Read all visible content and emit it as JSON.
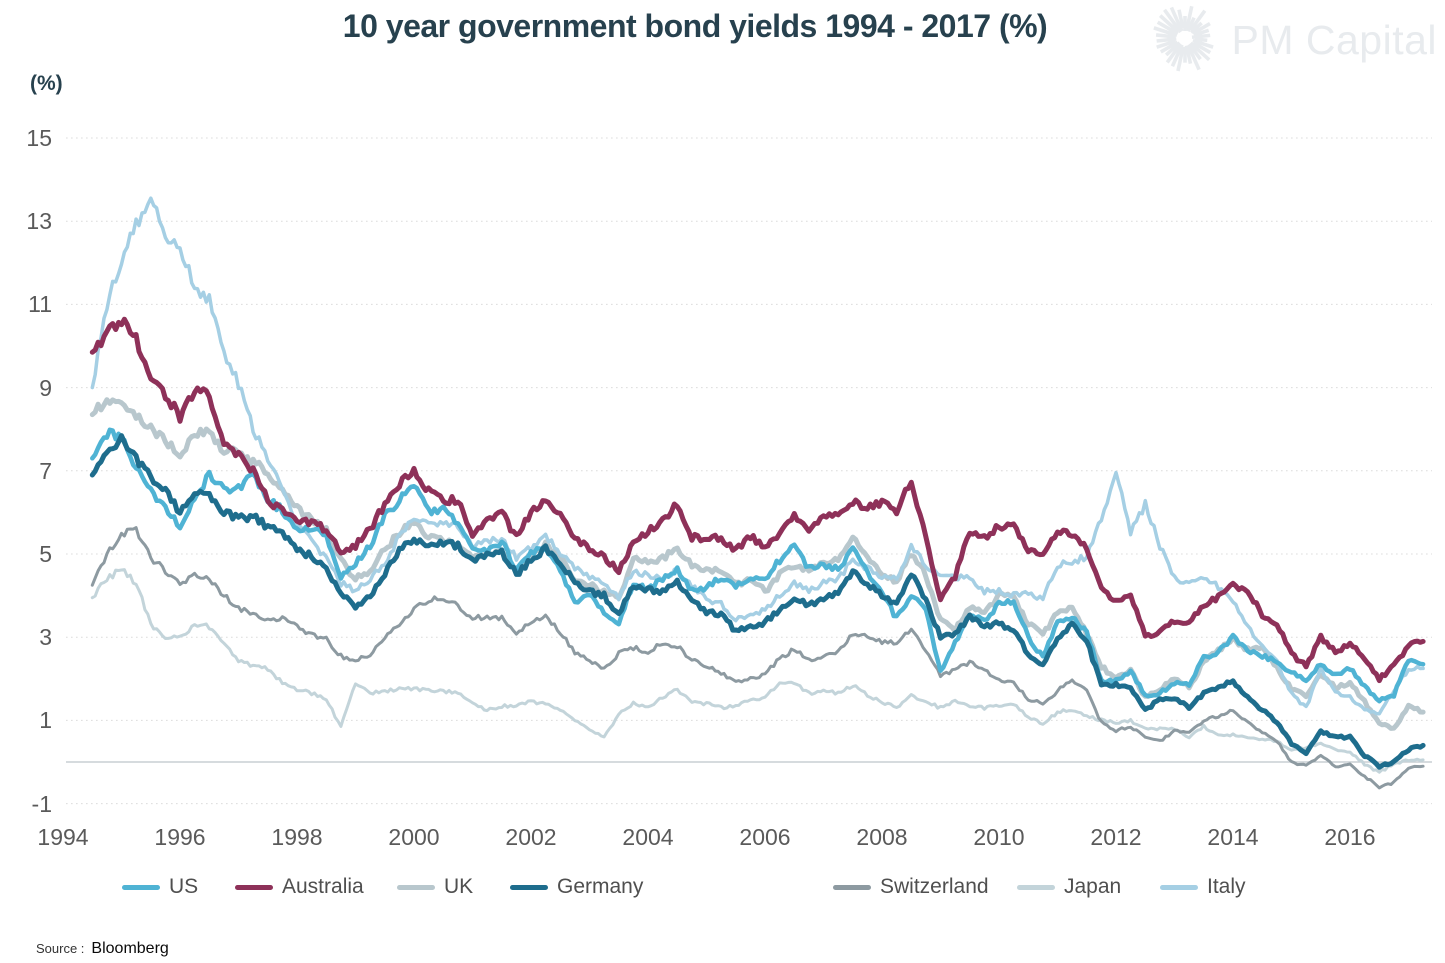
{
  "header": {
    "title": "10 year government bond yields 1994 - 2017 (%)",
    "title_color": "#27414e"
  },
  "logo": {
    "text": "PM Capital",
    "color": "#e8ebee",
    "icon": "starburst-icon"
  },
  "source": {
    "label": "Source :",
    "value": "Bloomberg"
  },
  "chart_data": {
    "type": "line",
    "title": "10 year government bond yields 1994 - 2017 (%)",
    "ylabel": "(%)",
    "xlabel": "",
    "ylim": [
      -1,
      15
    ],
    "xlim": [
      1994,
      2017.4
    ],
    "yticks": [
      15,
      13,
      11,
      9,
      7,
      5,
      3,
      1,
      -1
    ],
    "xticks": [
      1994,
      1996,
      1998,
      2000,
      2002,
      2004,
      2006,
      2008,
      2010,
      2012,
      2014,
      2016
    ],
    "grid": "horizontal-dotted",
    "grid_color": "#dcdcdc",
    "zero_line": true,
    "zero_line_color": "#c9cfd3",
    "tick_color": "#5a5a5a",
    "legend_position": "bottom",
    "x": [
      1994.5,
      1994.75,
      1995,
      1995.25,
      1995.5,
      1995.75,
      1996,
      1996.25,
      1996.5,
      1996.75,
      1997,
      1997.25,
      1997.5,
      1997.75,
      1998,
      1998.25,
      1998.5,
      1998.75,
      1999,
      1999.25,
      1999.5,
      1999.75,
      2000,
      2000.25,
      2000.5,
      2000.75,
      2001,
      2001.25,
      2001.5,
      2001.75,
      2002,
      2002.25,
      2002.5,
      2002.75,
      2003,
      2003.25,
      2003.5,
      2003.75,
      2004,
      2004.25,
      2004.5,
      2004.75,
      2005,
      2005.25,
      2005.5,
      2005.75,
      2006,
      2006.25,
      2006.5,
      2006.75,
      2007,
      2007.25,
      2007.5,
      2007.75,
      2008,
      2008.25,
      2008.5,
      2008.75,
      2009,
      2009.25,
      2009.5,
      2009.75,
      2010,
      2010.25,
      2010.5,
      2010.75,
      2011,
      2011.25,
      2011.5,
      2011.75,
      2012,
      2012.25,
      2012.5,
      2012.75,
      2013,
      2013.25,
      2013.5,
      2013.75,
      2014,
      2014.25,
      2014.5,
      2014.75,
      2015,
      2015.25,
      2015.5,
      2015.75,
      2016,
      2016.25,
      2016.5,
      2016.75,
      2017,
      2017.25
    ],
    "series": [
      {
        "name": "US",
        "color": "#4fb3d4",
        "width": 4.5,
        "values": [
          7.3,
          7.9,
          7.8,
          7.1,
          6.5,
          6.15,
          5.65,
          6.35,
          6.9,
          6.55,
          6.6,
          6.9,
          6.3,
          6.05,
          5.6,
          5.65,
          5.45,
          4.45,
          4.75,
          5.2,
          5.9,
          6.3,
          6.7,
          6.0,
          6.05,
          5.75,
          5.2,
          5.1,
          5.3,
          4.6,
          5.05,
          5.2,
          4.6,
          3.85,
          4.0,
          3.6,
          3.3,
          4.3,
          4.15,
          4.4,
          4.6,
          4.1,
          4.2,
          4.45,
          4.2,
          4.4,
          4.4,
          4.85,
          5.2,
          4.65,
          4.75,
          4.65,
          5.1,
          4.55,
          4.05,
          3.45,
          4.0,
          3.65,
          2.15,
          2.85,
          3.55,
          3.4,
          3.8,
          3.85,
          3.0,
          2.5,
          3.35,
          3.45,
          3.15,
          1.95,
          1.95,
          2.2,
          1.6,
          1.65,
          1.9,
          1.85,
          2.5,
          2.65,
          3.0,
          2.7,
          2.55,
          2.4,
          2.15,
          1.95,
          2.35,
          2.1,
          2.25,
          1.8,
          1.5,
          1.6,
          2.45,
          2.35
        ]
      },
      {
        "name": "Australia",
        "color": "#8e3159",
        "width": 5,
        "values": [
          9.85,
          10.3,
          10.65,
          10.2,
          9.2,
          8.85,
          8.3,
          8.9,
          8.85,
          7.6,
          7.4,
          7.0,
          6.3,
          6.05,
          5.85,
          5.75,
          5.6,
          5.0,
          5.2,
          5.6,
          6.2,
          6.7,
          7.0,
          6.5,
          6.3,
          6.3,
          5.5,
          5.8,
          6.0,
          5.4,
          6.0,
          6.35,
          5.9,
          5.4,
          5.1,
          4.95,
          4.55,
          5.3,
          5.55,
          5.8,
          6.2,
          5.4,
          5.4,
          5.4,
          5.1,
          5.4,
          5.2,
          5.5,
          5.9,
          5.6,
          5.85,
          5.95,
          6.25,
          6.1,
          6.25,
          6.05,
          6.75,
          5.35,
          3.95,
          4.45,
          5.55,
          5.4,
          5.65,
          5.75,
          5.1,
          5.05,
          5.55,
          5.5,
          5.1,
          4.2,
          3.85,
          4.0,
          3.05,
          3.1,
          3.4,
          3.35,
          3.8,
          3.95,
          4.25,
          4.1,
          3.55,
          3.35,
          2.6,
          2.3,
          3.0,
          2.65,
          2.85,
          2.5,
          2.0,
          2.3,
          2.8,
          2.9
        ]
      },
      {
        "name": "UK",
        "color": "#b8c7cd",
        "width": 5,
        "values": [
          8.35,
          8.7,
          8.55,
          8.3,
          8.0,
          7.7,
          7.4,
          7.9,
          7.9,
          7.5,
          7.5,
          7.2,
          7.0,
          6.5,
          6.1,
          5.85,
          5.6,
          4.85,
          4.4,
          4.6,
          5.1,
          5.5,
          5.8,
          5.4,
          5.3,
          5.2,
          4.9,
          4.95,
          5.1,
          4.6,
          5.0,
          5.25,
          4.9,
          4.4,
          4.25,
          4.1,
          3.95,
          4.9,
          4.8,
          4.9,
          5.15,
          4.75,
          4.6,
          4.6,
          4.25,
          4.4,
          4.1,
          4.5,
          4.7,
          4.6,
          4.75,
          4.9,
          5.4,
          4.9,
          4.5,
          4.35,
          5.0,
          4.5,
          3.4,
          3.2,
          3.7,
          3.6,
          4.0,
          3.95,
          3.35,
          3.05,
          3.6,
          3.7,
          3.1,
          2.3,
          2.0,
          2.2,
          1.55,
          1.75,
          2.0,
          1.8,
          2.4,
          2.7,
          2.95,
          2.7,
          2.75,
          2.25,
          1.75,
          1.6,
          2.1,
          1.8,
          1.9,
          1.45,
          0.95,
          0.8,
          1.35,
          1.2
        ]
      },
      {
        "name": "Germany",
        "color": "#1e6d8d",
        "width": 5,
        "values": [
          6.9,
          7.5,
          7.75,
          7.3,
          6.85,
          6.5,
          6.0,
          6.4,
          6.45,
          6.0,
          5.85,
          5.9,
          5.65,
          5.55,
          5.1,
          4.95,
          4.65,
          4.05,
          3.75,
          4.0,
          4.5,
          5.1,
          5.35,
          5.2,
          5.25,
          5.2,
          4.8,
          4.95,
          5.05,
          4.5,
          4.85,
          5.15,
          4.75,
          4.35,
          4.1,
          4.0,
          3.55,
          4.25,
          4.15,
          4.1,
          4.3,
          3.95,
          3.6,
          3.55,
          3.15,
          3.25,
          3.35,
          3.65,
          3.95,
          3.75,
          3.95,
          4.05,
          4.55,
          4.3,
          4.0,
          3.75,
          4.55,
          3.9,
          3.0,
          3.1,
          3.5,
          3.25,
          3.35,
          3.15,
          2.6,
          2.3,
          3.0,
          3.3,
          2.9,
          1.85,
          1.85,
          1.8,
          1.25,
          1.5,
          1.55,
          1.3,
          1.65,
          1.8,
          1.95,
          1.55,
          1.25,
          0.95,
          0.45,
          0.2,
          0.75,
          0.6,
          0.6,
          0.15,
          -0.1,
          0.0,
          0.3,
          0.4
        ]
      },
      {
        "name": "Switzerland",
        "color": "#8d9aa1",
        "width": 3,
        "values": [
          4.25,
          5.0,
          5.5,
          5.55,
          4.9,
          4.6,
          4.25,
          4.5,
          4.4,
          4.0,
          3.7,
          3.55,
          3.45,
          3.45,
          3.25,
          3.05,
          2.95,
          2.55,
          2.45,
          2.6,
          3.0,
          3.3,
          3.65,
          3.9,
          3.95,
          3.75,
          3.45,
          3.5,
          3.45,
          3.1,
          3.35,
          3.55,
          3.1,
          2.65,
          2.45,
          2.25,
          2.6,
          2.75,
          2.65,
          2.85,
          2.8,
          2.45,
          2.3,
          2.15,
          1.9,
          2.0,
          2.1,
          2.5,
          2.7,
          2.45,
          2.55,
          2.65,
          3.1,
          3.0,
          2.9,
          2.85,
          3.2,
          2.7,
          2.1,
          2.2,
          2.4,
          2.2,
          2.0,
          1.9,
          1.5,
          1.4,
          1.7,
          2.0,
          1.7,
          0.95,
          0.75,
          0.85,
          0.6,
          0.5,
          0.75,
          0.7,
          1.0,
          1.1,
          1.25,
          0.95,
          0.7,
          0.5,
          0.0,
          -0.1,
          0.15,
          -0.1,
          -0.05,
          -0.35,
          -0.6,
          -0.5,
          -0.15,
          -0.1
        ]
      },
      {
        "name": "Japan",
        "color": "#c3d4da",
        "width": 3,
        "values": [
          3.95,
          4.4,
          4.65,
          4.3,
          3.3,
          3.0,
          3.0,
          3.3,
          3.25,
          2.85,
          2.45,
          2.3,
          2.25,
          1.9,
          1.75,
          1.65,
          1.5,
          0.85,
          1.9,
          1.65,
          1.7,
          1.75,
          1.75,
          1.75,
          1.7,
          1.65,
          1.45,
          1.25,
          1.35,
          1.35,
          1.45,
          1.4,
          1.25,
          1.0,
          0.8,
          0.6,
          1.15,
          1.4,
          1.3,
          1.55,
          1.75,
          1.45,
          1.4,
          1.3,
          1.35,
          1.5,
          1.55,
          1.9,
          1.9,
          1.65,
          1.7,
          1.65,
          1.85,
          1.6,
          1.45,
          1.3,
          1.6,
          1.45,
          1.3,
          1.45,
          1.35,
          1.3,
          1.35,
          1.4,
          1.1,
          0.9,
          1.2,
          1.25,
          1.1,
          1.0,
          0.95,
          1.0,
          0.8,
          0.8,
          0.8,
          0.6,
          0.85,
          0.65,
          0.65,
          0.6,
          0.55,
          0.5,
          0.3,
          0.35,
          0.45,
          0.3,
          0.25,
          -0.05,
          -0.25,
          -0.05,
          0.05,
          0.05
        ]
      },
      {
        "name": "Italy",
        "color": "#a5cfe4",
        "width": 3.5,
        "values": [
          9.0,
          11.0,
          12.1,
          12.9,
          13.7,
          12.6,
          12.4,
          11.4,
          11.15,
          9.8,
          9.1,
          8.0,
          7.3,
          6.5,
          5.8,
          5.3,
          4.9,
          4.3,
          4.1,
          4.4,
          4.8,
          5.4,
          5.9,
          5.75,
          5.75,
          5.7,
          5.2,
          5.3,
          5.35,
          4.9,
          5.15,
          5.45,
          5.05,
          4.65,
          4.45,
          4.3,
          3.95,
          4.6,
          4.5,
          4.45,
          4.6,
          4.25,
          3.9,
          3.8,
          3.4,
          3.55,
          3.65,
          4.0,
          4.3,
          4.1,
          4.3,
          4.4,
          4.85,
          4.65,
          4.45,
          4.4,
          5.15,
          4.75,
          4.45,
          4.45,
          4.45,
          4.1,
          4.1,
          4.0,
          4.05,
          3.9,
          4.75,
          4.8,
          4.95,
          5.85,
          7.0,
          5.5,
          6.2,
          5.2,
          4.4,
          4.3,
          4.45,
          4.2,
          3.9,
          3.25,
          2.8,
          2.4,
          1.65,
          1.3,
          2.25,
          1.7,
          1.55,
          1.25,
          1.15,
          1.7,
          2.25,
          2.25
        ]
      }
    ],
    "draw_order": [
      "Japan",
      "Switzerland",
      "UK",
      "Italy",
      "US",
      "Germany",
      "Australia"
    ]
  }
}
